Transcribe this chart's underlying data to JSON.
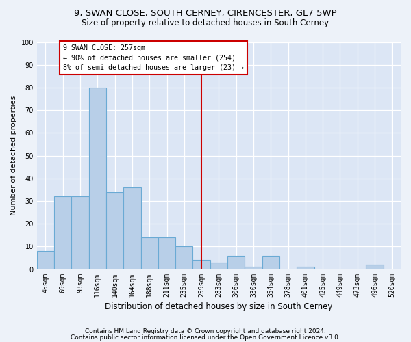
{
  "title_line1": "9, SWAN CLOSE, SOUTH CERNEY, CIRENCESTER, GL7 5WP",
  "title_line2": "Size of property relative to detached houses in South Cerney",
  "xlabel": "Distribution of detached houses by size in South Cerney",
  "ylabel": "Number of detached properties",
  "categories": [
    "45sqm",
    "69sqm",
    "93sqm",
    "116sqm",
    "140sqm",
    "164sqm",
    "188sqm",
    "211sqm",
    "235sqm",
    "259sqm",
    "283sqm",
    "306sqm",
    "330sqm",
    "354sqm",
    "378sqm",
    "401sqm",
    "425sqm",
    "449sqm",
    "473sqm",
    "496sqm",
    "520sqm"
  ],
  "values": [
    8,
    32,
    32,
    80,
    34,
    36,
    14,
    14,
    10,
    4,
    3,
    6,
    1,
    6,
    0,
    1,
    0,
    0,
    0,
    2,
    0
  ],
  "bar_color": "#b8cfe8",
  "bar_edge_color": "#6aaad4",
  "vline_x_index": 9,
  "vline_color": "#cc0000",
  "annotation_text": "9 SWAN CLOSE: 257sqm\n← 90% of detached houses are smaller (254)\n8% of semi-detached houses are larger (23) →",
  "annotation_box_color": "#ffffff",
  "annotation_box_edge_color": "#cc0000",
  "ylim": [
    0,
    100
  ],
  "yticks": [
    0,
    10,
    20,
    30,
    40,
    50,
    60,
    70,
    80,
    90,
    100
  ],
  "footer_line1": "Contains HM Land Registry data © Crown copyright and database right 2024.",
  "footer_line2": "Contains public sector information licensed under the Open Government Licence v3.0.",
  "bg_color": "#edf2f9",
  "plot_bg_color": "#dce6f5",
  "grid_color": "#ffffff",
  "title_fontsize": 9.5,
  "subtitle_fontsize": 8.5,
  "ylabel_fontsize": 8,
  "xlabel_fontsize": 8.5,
  "tick_fontsize": 7,
  "annot_fontsize": 7.2,
  "footer_fontsize": 6.5
}
